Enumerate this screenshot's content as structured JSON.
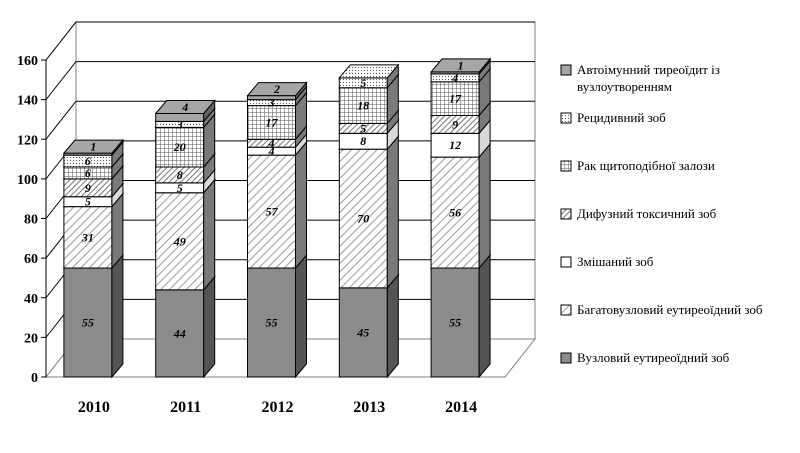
{
  "chart_data": {
    "type": "bar",
    "stacked": true,
    "three_d": true,
    "categories": [
      "2010",
      "2011",
      "2012",
      "2013",
      "2014"
    ],
    "ylim": [
      0,
      160
    ],
    "yticks": [
      0,
      20,
      40,
      60,
      80,
      100,
      120,
      140,
      160
    ],
    "grid": true,
    "legend_position": "right",
    "series": [
      {
        "name": "Вузловий еутиреоїдний зоб",
        "values": [
          55,
          44,
          55,
          45,
          55
        ],
        "fill": "#8c8c8c"
      },
      {
        "name": "Багатовузловий еутиреоїдний зоб",
        "values": [
          31,
          49,
          57,
          70,
          56
        ],
        "fill": "hatch-diag"
      },
      {
        "name": "Змішаний зоб",
        "values": [
          5,
          5,
          4,
          8,
          12
        ],
        "fill": "#ffffff"
      },
      {
        "name": "Дифузний токсичний зоб",
        "values": [
          9,
          8,
          4,
          5,
          9
        ],
        "fill": "hatch-diag-dense"
      },
      {
        "name": "Рак щитоподібної залози",
        "values": [
          6,
          20,
          17,
          18,
          17
        ],
        "fill": "hatch-grid"
      },
      {
        "name": "Рецидивний зоб",
        "values": [
          6,
          3,
          3,
          5,
          4
        ],
        "fill": "hatch-dots"
      },
      {
        "name": "Автоімунний тиреоїдит із вузлоутворенням",
        "values": [
          1,
          4,
          2,
          0,
          1
        ],
        "fill": "#a6a6a6"
      }
    ],
    "data_labels": [
      [
        "55",
        "31",
        "5",
        "9",
        "6",
        "6",
        "1"
      ],
      [
        "44",
        "49",
        "5",
        "8",
        "20",
        "3",
        "4"
      ],
      [
        "55",
        "57",
        "4",
        "4",
        "17",
        "3",
        "2"
      ],
      [
        "45",
        "70",
        "8",
        "5",
        "18",
        "5",
        ""
      ],
      [
        "55",
        "56",
        "12",
        "9",
        "17",
        "4",
        "1"
      ]
    ],
    "legend_order": [
      6,
      5,
      4,
      3,
      2,
      1,
      0
    ]
  }
}
